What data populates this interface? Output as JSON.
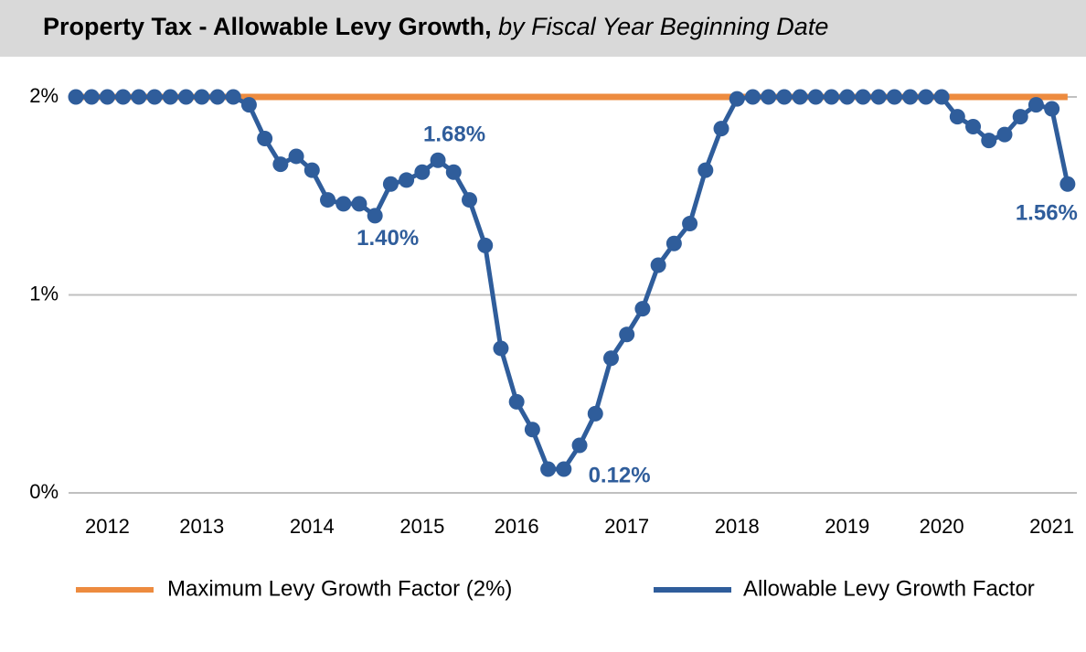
{
  "chart_data": {
    "type": "line",
    "title": "Property Tax - Allowable Levy Growth,",
    "subtitle": "by Fiscal Year Beginning Date",
    "categories": [
      null,
      null,
      "2012",
      null,
      null,
      null,
      null,
      null,
      "2013",
      null,
      null,
      null,
      null,
      null,
      null,
      "2014",
      null,
      null,
      null,
      null,
      null,
      null,
      "2015",
      null,
      null,
      null,
      null,
      null,
      "2016",
      null,
      null,
      null,
      null,
      null,
      null,
      "2017",
      null,
      null,
      null,
      null,
      null,
      null,
      "2018",
      null,
      null,
      null,
      null,
      null,
      null,
      "2019",
      null,
      null,
      null,
      null,
      null,
      "2020",
      null,
      null,
      null,
      null,
      null,
      null,
      "2021",
      null
    ],
    "series": [
      {
        "name": "Maximum Levy Growth Factor (2%)",
        "color": "#ed8b3f",
        "values": [
          2,
          2,
          2,
          2,
          2,
          2,
          2,
          2,
          2,
          2,
          2,
          2,
          2,
          2,
          2,
          2,
          2,
          2,
          2,
          2,
          2,
          2,
          2,
          2,
          2,
          2,
          2,
          2,
          2,
          2,
          2,
          2,
          2,
          2,
          2,
          2,
          2,
          2,
          2,
          2,
          2,
          2,
          2,
          2,
          2,
          2,
          2,
          2,
          2,
          2,
          2,
          2,
          2,
          2,
          2,
          2,
          2,
          2,
          2,
          2,
          2,
          2,
          2,
          2
        ]
      },
      {
        "name": "Allowable Levy Growth Factor",
        "color": "#2f5d9b",
        "values": [
          2,
          2,
          2,
          2,
          2,
          2,
          2,
          2,
          2,
          2,
          2,
          1.96,
          1.79,
          1.66,
          1.7,
          1.63,
          1.48,
          1.46,
          1.46,
          1.4,
          1.56,
          1.58,
          1.62,
          1.68,
          1.62,
          1.48,
          1.25,
          0.73,
          0.46,
          0.32,
          0.12,
          0.12,
          0.24,
          0.4,
          0.68,
          0.8,
          0.93,
          1.15,
          1.26,
          1.36,
          1.63,
          1.84,
          1.99,
          2,
          2,
          2,
          2,
          2,
          2,
          2,
          2,
          2,
          2,
          2,
          2,
          2,
          1.9,
          1.85,
          1.78,
          1.81,
          1.9,
          1.96,
          1.94,
          1.56
        ],
        "value_labels": [
          null,
          null,
          null,
          null,
          null,
          null,
          null,
          null,
          null,
          null,
          null,
          null,
          null,
          null,
          null,
          null,
          null,
          null,
          null,
          "1.40%",
          null,
          null,
          null,
          "1.68%",
          null,
          null,
          null,
          null,
          null,
          null,
          "0.12%",
          null,
          null,
          null,
          null,
          null,
          null,
          null,
          null,
          null,
          null,
          null,
          null,
          null,
          null,
          null,
          null,
          null,
          null,
          null,
          null,
          null,
          null,
          null,
          null,
          null,
          null,
          null,
          null,
          null,
          null,
          null,
          null,
          "1.56%"
        ]
      }
    ],
    "ylim": [
      0,
      2.12
    ],
    "yticks": [
      {
        "value": 0,
        "label": "0%"
      },
      {
        "value": 1,
        "label": "1%"
      },
      {
        "value": 2,
        "label": "2%"
      }
    ],
    "grid": true,
    "legend": "bottom"
  }
}
